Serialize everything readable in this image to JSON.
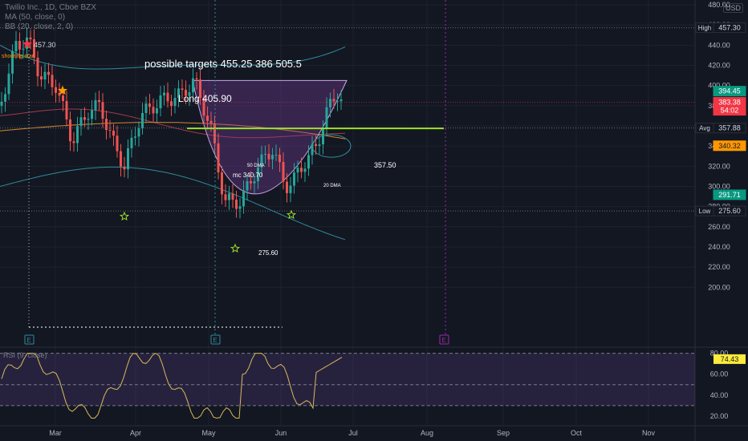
{
  "header": {
    "symbol_line": "Twilio Inc., 1D, Cboe BZX",
    "ma_line": "MA (50, close, 0)",
    "bb_line": "BB (20, close, 2, 0)",
    "currency": "USD"
  },
  "chart_data": {
    "type": "candlestick",
    "price_axis": {
      "ticks": [
        480,
        460,
        440,
        420,
        400,
        380,
        360,
        340,
        320,
        300,
        280,
        260,
        240,
        220,
        200
      ],
      "range": [
        190,
        500
      ]
    },
    "time_axis": {
      "ticks": [
        "Mar",
        "Apr",
        "May",
        "Jun",
        "Jul",
        "Aug",
        "Sep",
        "Oct",
        "Nov"
      ]
    },
    "price_badges": [
      {
        "label": "High",
        "value": "457.30",
        "price": 457.3,
        "color": "#131722",
        "border": "#2a2e39",
        "text": "#d1d4dc"
      },
      {
        "label": "",
        "value": "394.45",
        "price": 394.45,
        "color": "#089981",
        "text": "#ffffff"
      },
      {
        "label": "",
        "value": "383.38",
        "sub": "54:02",
        "price": 383.38,
        "color": "#f23645",
        "text": "#ffffff"
      },
      {
        "label": "Avg",
        "value": "357.88",
        "price": 357.88,
        "color": "#131722",
        "border": "#2a2e39",
        "text": "#d1d4dc"
      },
      {
        "label": "",
        "value": "340.32",
        "price": 340.32,
        "color": "#ff9800",
        "text": "#131722"
      },
      {
        "label": "",
        "value": "291.71",
        "price": 291.71,
        "color": "#089981",
        "text": "#ffffff"
      },
      {
        "label": "Low",
        "value": "275.60",
        "price": 275.6,
        "color": "#131722",
        "border": "#2a2e39",
        "text": "#d1d4dc"
      }
    ],
    "annotations": {
      "targets": "possible targets  455.25  386   505.5",
      "long": "Long 405.90",
      "high_marker": "457.30",
      "shooting_star": "shooting star",
      "dma50": "50 DMA",
      "mc": "mc  340.70",
      "dma20": "20 DMA",
      "level": "357.50",
      "low": "275.60",
      "earnings": [
        "E",
        "E",
        "E"
      ]
    },
    "rsi": {
      "label": "RSI (9, close)",
      "ticks": [
        80,
        60,
        40,
        20
      ],
      "last": "74.43",
      "upper": 80,
      "mid": 50,
      "lower": 30
    }
  }
}
